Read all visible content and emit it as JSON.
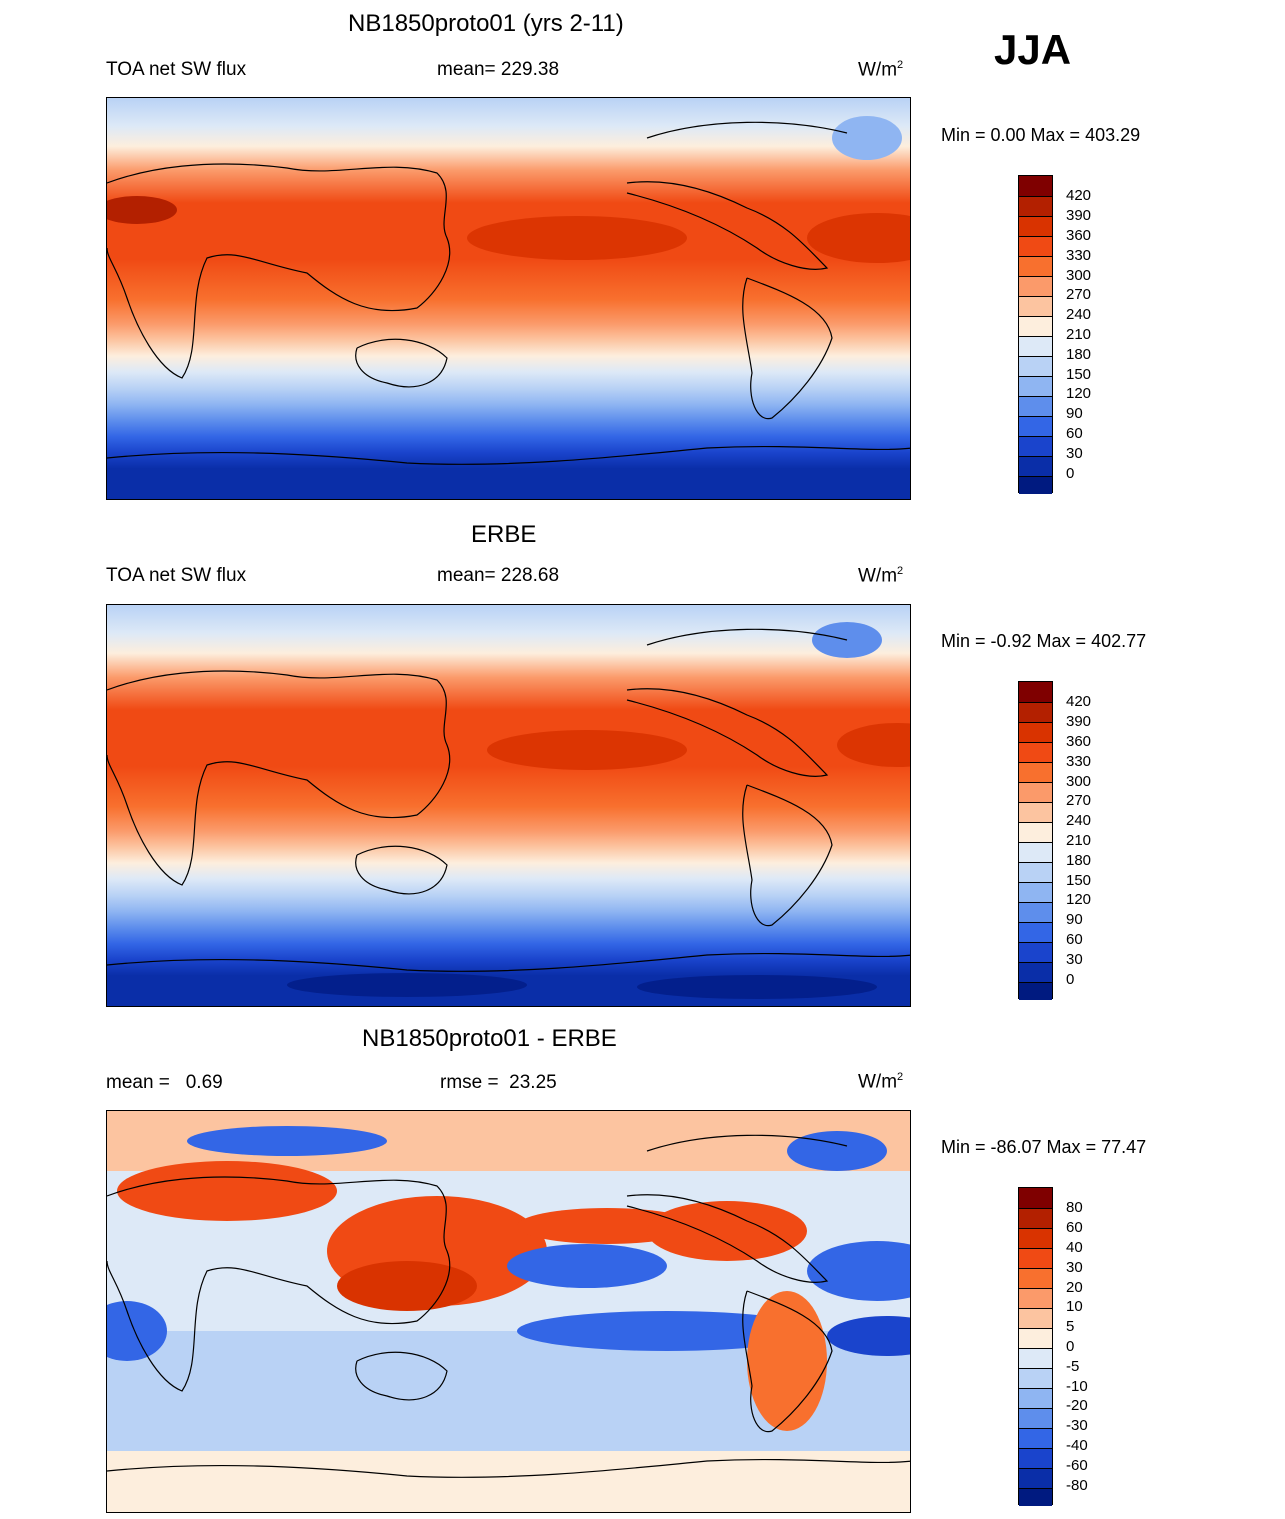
{
  "season": "JJA",
  "panels": [
    {
      "title": "NB1850proto01 (yrs 2-11)",
      "left_label": "TOA net SW flux",
      "center_label": "mean= 229.38",
      "units": "W/m",
      "units_sup": "2",
      "minmax": "Min =   0.00 Max = 403.29"
    },
    {
      "title": "ERBE",
      "left_label": "TOA net SW flux",
      "center_label": "mean= 228.68",
      "units": "W/m",
      "units_sup": "2",
      "minmax": "Min =  -0.92 Max = 402.77"
    },
    {
      "title": "NB1850proto01 - ERBE",
      "left_label": "mean =   0.69",
      "center_label": "rmse =  23.25",
      "units": "W/m",
      "units_sup": "2",
      "minmax": "Min = -86.07 Max =  77.47"
    }
  ],
  "colorbars": {
    "absolute": {
      "labels": [
        "420",
        "390",
        "360",
        "330",
        "300",
        "270",
        "240",
        "210",
        "180",
        "150",
        "120",
        "90",
        "60",
        "30",
        "0"
      ],
      "colors": [
        "#7f0000",
        "#b32000",
        "#d93300",
        "#f04a14",
        "#f8702e",
        "#fb9a6a",
        "#fcc4a0",
        "#fdeedd",
        "#dde9f7",
        "#b9d2f5",
        "#8fb5f2",
        "#5e8eec",
        "#3366e6",
        "#1a44cc",
        "#0a2ea8",
        "#001a80"
      ]
    },
    "difference": {
      "labels": [
        "80",
        "60",
        "40",
        "30",
        "20",
        "10",
        "5",
        "0",
        "-5",
        "-10",
        "-20",
        "-30",
        "-40",
        "-60",
        "-80"
      ],
      "colors": [
        "#7f0000",
        "#b32000",
        "#d93300",
        "#f04a14",
        "#f8702e",
        "#fb9a6a",
        "#fcc4a0",
        "#fdeedd",
        "#dde9f7",
        "#b9d2f5",
        "#8fb5f2",
        "#5e8eec",
        "#3366e6",
        "#1a44cc",
        "#0a2ea8",
        "#001a80"
      ]
    }
  }
}
